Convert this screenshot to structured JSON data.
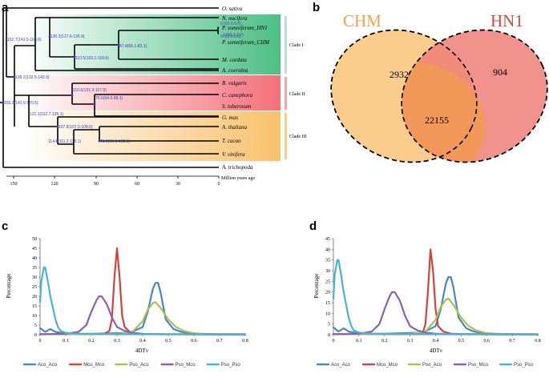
{
  "panel_labels": {
    "a": "a",
    "b": "b",
    "c": "c",
    "d": "d"
  },
  "tree": {
    "taxa": [
      "O. sativa",
      "N. nucifera",
      "P. somniferum_HN1",
      "P. somniferum_CHM",
      "M. cordata",
      "A. coerulea",
      "B. vulgaris",
      "C. canephora",
      "S. tuberosum",
      "G. max",
      "A. thaliana",
      "T. cacao",
      "V. vinifera",
      "A. trichopoda"
    ],
    "node_labels": [
      "152.7(141.5-163.8)",
      "130.2(127.6-135.9)",
      "0.0(0.0-0.0)",
      "0.0(0.0-0.0)",
      "2.6(0.7-2.7)",
      "67.4(66.1-82.1)",
      "110.5(103.1-118.6)",
      "138.2(132.5-143.9)",
      "110.6(101.3-117.9)",
      "79.6(54.0-98.1)",
      "155.2(143.9-170.5)",
      "121.1(112.7-125.1)",
      "107.8(107.0-109.0)",
      "114.6(111.2-118.1)",
      "91.9(69.0-102.1)"
    ],
    "clades": [
      "Clade I",
      "Clade II",
      "Clade III"
    ],
    "axis_ticks": [
      "150",
      "120",
      "90",
      "60",
      "30",
      "0"
    ],
    "axis_label": "Million years ago"
  },
  "venn": {
    "left_label": "CHM",
    "right_label": "HN1",
    "left_only": "2932",
    "right_only": "904",
    "shared": "22155",
    "colors": {
      "left": "#fbcd8c",
      "right": "#ee8078",
      "overlap": "#f2995a",
      "left_text": "#f5a14a",
      "right_text": "#e0443a"
    }
  },
  "charts": {
    "c": {
      "type": "line",
      "xlabel": "4DTv",
      "ylabel": "Percentage",
      "xlim": [
        0,
        0.8
      ],
      "ylim": [
        0,
        50
      ],
      "yticks": [
        "0",
        "5",
        "10",
        "15",
        "20",
        "25",
        "30",
        "35",
        "40",
        "45",
        "50"
      ],
      "xticks": [
        "0",
        "0.1",
        "0.2",
        "0.3",
        "0.4",
        "0.5",
        "0.6",
        "0.7",
        "0.8"
      ],
      "series_names": [
        "Aco_Aco",
        "Mco_Mco",
        "Pso_Aco",
        "Pso_Mco",
        "Pso_Pso"
      ]
    },
    "d": {
      "type": "line",
      "xlabel": "4DTv",
      "ylabel": "Percentage",
      "xlim": [
        0,
        0.8
      ],
      "ylim": [
        0,
        45
      ],
      "yticks": [
        "0",
        "5",
        "10",
        "15",
        "20",
        "25",
        "30",
        "35",
        "40",
        "45"
      ],
      "xticks": [
        "0",
        "0.1",
        "0.2",
        "0.3",
        "0.4",
        "0.5",
        "0.6",
        "0.7",
        "0.8"
      ],
      "series_names": [
        "Aco_Aco",
        "Mco_Mco",
        "Pso_Aco",
        "Pso_Mco",
        "Pso_Pso"
      ]
    }
  },
  "chart_data": [
    {
      "type": "line",
      "title": "",
      "xlabel": "4DTv",
      "ylabel": "Percentage",
      "xlim": [
        0,
        0.8
      ],
      "ylim": [
        0,
        50
      ],
      "series": [
        {
          "name": "Aco_Aco",
          "color": "#4a86c5",
          "x": [
            0.0,
            0.02,
            0.04,
            0.06,
            0.08,
            0.1,
            0.2,
            0.35,
            0.4,
            0.42,
            0.44,
            0.45,
            0.46,
            0.47,
            0.49,
            0.52,
            0.55,
            0.6,
            0.7,
            0.8
          ],
          "y": [
            3.5,
            1.5,
            3,
            1.5,
            1,
            0.5,
            0.5,
            1,
            4,
            12,
            24,
            27,
            27,
            22,
            8,
            3,
            1.5,
            0.5,
            0.3,
            0.2
          ]
        },
        {
          "name": "Mco_Mco",
          "color": "#d0453b",
          "x": [
            0.0,
            0.2,
            0.25,
            0.27,
            0.28,
            0.29,
            0.3,
            0.31,
            0.32,
            0.33,
            0.35,
            0.38,
            0.4,
            0.6,
            0.8
          ],
          "y": [
            0.3,
            0.3,
            0.5,
            2,
            8,
            30,
            45,
            30,
            10,
            4,
            1.5,
            0.5,
            0.3,
            0.2,
            0.1
          ]
        },
        {
          "name": "Pso_Aco",
          "color": "#a9c256",
          "x": [
            0.0,
            0.3,
            0.36,
            0.4,
            0.42,
            0.44,
            0.45,
            0.47,
            0.5,
            0.53,
            0.56,
            0.6,
            0.65,
            0.8
          ],
          "y": [
            0.2,
            0.3,
            1.5,
            7,
            13,
            16.5,
            17,
            14,
            8,
            4,
            2,
            0.8,
            0.3,
            0.2
          ]
        },
        {
          "name": "Pso_Mco",
          "color": "#8c5fb0",
          "x": [
            0.0,
            0.1,
            0.15,
            0.18,
            0.2,
            0.22,
            0.23,
            0.24,
            0.26,
            0.28,
            0.3,
            0.33,
            0.36,
            0.4,
            0.5,
            0.8
          ],
          "y": [
            0.3,
            0.5,
            1.5,
            5,
            12,
            18,
            20,
            20,
            16,
            9,
            4,
            2,
            1,
            0.5,
            0.3,
            0.2
          ]
        },
        {
          "name": "Pso_Pso",
          "color": "#49b4cf",
          "x": [
            0.0,
            0.005,
            0.015,
            0.02,
            0.03,
            0.04,
            0.05,
            0.06,
            0.07,
            0.08,
            0.1,
            0.15,
            0.2,
            0.3,
            0.5,
            0.8
          ],
          "y": [
            17,
            28,
            35,
            35,
            28,
            20,
            14,
            8,
            4,
            2,
            1,
            0.5,
            0.4,
            0.3,
            0.2,
            0.1
          ]
        }
      ]
    },
    {
      "type": "line",
      "title": "",
      "xlabel": "4DTv",
      "ylabel": "Percentage",
      "xlim": [
        0,
        0.8
      ],
      "ylim": [
        0,
        45
      ],
      "series": [
        {
          "name": "Aco_Aco",
          "color": "#4a86c5",
          "x": [
            0.0,
            0.02,
            0.04,
            0.06,
            0.08,
            0.1,
            0.2,
            0.35,
            0.4,
            0.42,
            0.44,
            0.45,
            0.46,
            0.47,
            0.49,
            0.52,
            0.55,
            0.6,
            0.7,
            0.8
          ],
          "y": [
            3.5,
            1.5,
            3,
            1.5,
            1,
            0.5,
            0.5,
            1,
            4,
            12,
            24,
            27,
            27,
            22,
            8,
            3,
            1.5,
            0.5,
            0.3,
            0.2
          ]
        },
        {
          "name": "Mco_Mco",
          "color": "#d0453b",
          "x": [
            0.0,
            0.3,
            0.35,
            0.36,
            0.37,
            0.38,
            0.39,
            0.4,
            0.41,
            0.43,
            0.46,
            0.5,
            0.6,
            0.8
          ],
          "y": [
            0.3,
            0.3,
            1,
            5,
            20,
            40,
            30,
            12,
            4,
            1.5,
            0.5,
            0.3,
            0.2,
            0.1
          ]
        },
        {
          "name": "Pso_Aco",
          "color": "#a9c256",
          "x": [
            0.0,
            0.3,
            0.36,
            0.4,
            0.42,
            0.44,
            0.45,
            0.47,
            0.5,
            0.53,
            0.56,
            0.6,
            0.65,
            0.8
          ],
          "y": [
            0.2,
            0.3,
            1.5,
            7,
            13,
            16.5,
            17,
            14,
            8,
            4,
            2,
            0.8,
            0.3,
            0.2
          ]
        },
        {
          "name": "Pso_Mco",
          "color": "#8c5fb0",
          "x": [
            0.0,
            0.1,
            0.15,
            0.18,
            0.2,
            0.22,
            0.23,
            0.24,
            0.26,
            0.28,
            0.3,
            0.33,
            0.36,
            0.4,
            0.5,
            0.8
          ],
          "y": [
            0.3,
            0.5,
            1.5,
            5,
            12,
            18,
            20,
            20,
            16,
            9,
            4,
            2,
            1,
            0.5,
            0.3,
            0.2
          ]
        },
        {
          "name": "Pso_Pso",
          "color": "#49b4cf",
          "x": [
            0.0,
            0.005,
            0.015,
            0.02,
            0.03,
            0.04,
            0.05,
            0.06,
            0.07,
            0.08,
            0.1,
            0.15,
            0.2,
            0.3,
            0.5,
            0.8
          ],
          "y": [
            17,
            28,
            35,
            35,
            28,
            20,
            14,
            8,
            4,
            2,
            1,
            0.5,
            0.4,
            0.3,
            0.2,
            0.1
          ]
        }
      ]
    }
  ]
}
